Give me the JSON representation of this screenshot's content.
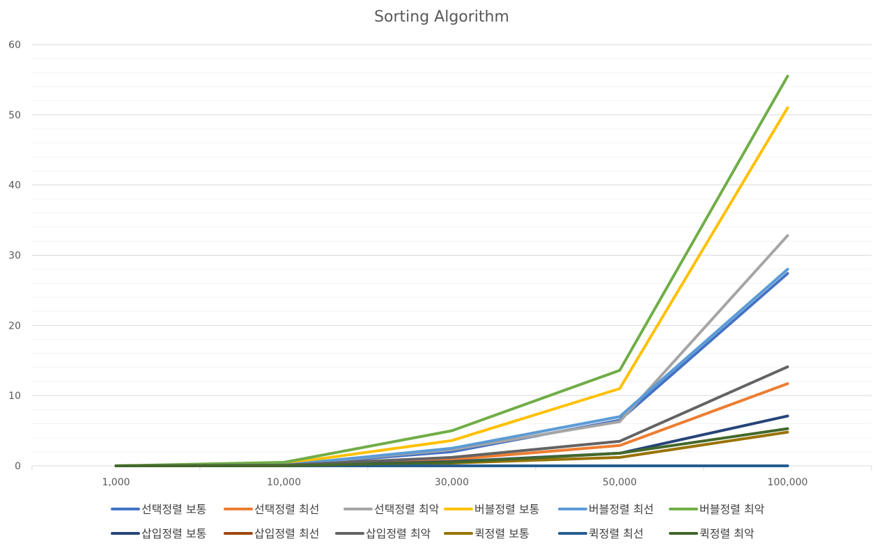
{
  "chart_data": {
    "type": "line",
    "title": "Sorting Algorithm",
    "xlabel": "",
    "ylabel": "",
    "categories": [
      "1,000",
      "10,000",
      "30,000",
      "50,000",
      "100,000"
    ],
    "ylim": [
      0,
      60
    ],
    "yticks": [
      0,
      10,
      20,
      30,
      40,
      50,
      60
    ],
    "grid": "on",
    "legend_position": "bottom",
    "series": [
      {
        "name": "선택정렬 보통",
        "color": "#4472C4",
        "values": [
          0.0,
          0.1,
          2.0,
          6.5,
          27.4
        ]
      },
      {
        "name": "선택정렬 최선",
        "color": "#ED7D31",
        "values": [
          0.0,
          0.1,
          0.9,
          2.9,
          11.7
        ]
      },
      {
        "name": "선택정렬 최악",
        "color": "#A5A5A5",
        "values": [
          0.0,
          0.1,
          2.3,
          6.3,
          32.8
        ]
      },
      {
        "name": "버블정렬 보통",
        "color": "#FFC000",
        "values": [
          0.0,
          0.3,
          3.6,
          11.0,
          51.0
        ]
      },
      {
        "name": "버블정렬 최선",
        "color": "#5B9BD5",
        "values": [
          0.0,
          0.1,
          2.5,
          7.0,
          28.0
        ]
      },
      {
        "name": "버블정렬 최악",
        "color": "#70AD47",
        "values": [
          0.0,
          0.5,
          5.0,
          13.6,
          55.5
        ]
      },
      {
        "name": "삽입정렬 보통",
        "color": "#264478",
        "values": [
          0.0,
          0.0,
          0.6,
          1.8,
          7.1
        ]
      },
      {
        "name": "삽입정렬 최선",
        "color": "#9E480E",
        "values": [
          0.0,
          0.0,
          0.0,
          0.0,
          0.0
        ]
      },
      {
        "name": "삽입정렬 최악",
        "color": "#636363",
        "values": [
          0.0,
          0.1,
          1.2,
          3.5,
          14.1
        ]
      },
      {
        "name": "퀵정렬 보통",
        "color": "#997300",
        "values": [
          0.0,
          0.0,
          0.4,
          1.2,
          4.8
        ]
      },
      {
        "name": "퀵정렬 최선",
        "color": "#255E91",
        "values": [
          0.0,
          0.0,
          0.0,
          0.0,
          0.0
        ]
      },
      {
        "name": "퀵정렬 최악",
        "color": "#43682B",
        "values": [
          0.0,
          0.0,
          0.5,
          1.8,
          5.3
        ]
      }
    ]
  }
}
